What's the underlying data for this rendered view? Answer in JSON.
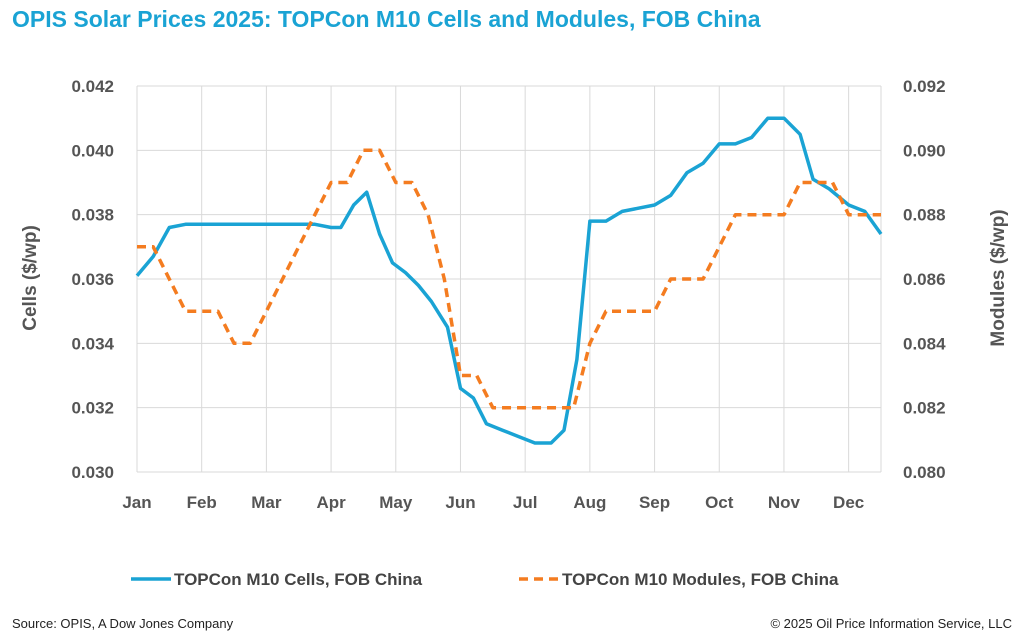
{
  "title": "OPIS Solar Prices 2025: TOPCon M10 Cells and Modules, FOB China",
  "source": "Source: OPIS, A Dow Jones Company",
  "copyright": "© 2025 Oil Price Information Service, LLC",
  "colors": {
    "title": "#1aa3d4",
    "cells": "#1aa3d4",
    "modules": "#f47c20",
    "grid": "#d9d9d9"
  },
  "chart_data": {
    "type": "line",
    "title": "OPIS Solar Prices 2025: TOPCon M10 Cells and Modules, FOB China",
    "x_label": "",
    "y_left_label": "Cells ($/wp)",
    "y_right_label": "Modules ($/wp)",
    "y_left_range": [
      0.03,
      0.042
    ],
    "y_right_range": [
      0.08,
      0.092
    ],
    "y_left_ticks": [
      "0.030",
      "0.032",
      "0.034",
      "0.036",
      "0.038",
      "0.040",
      "0.042"
    ],
    "y_right_ticks": [
      "0.080",
      "0.082",
      "0.084",
      "0.086",
      "0.088",
      "0.090",
      "0.092"
    ],
    "x_range": [
      0,
      11.5
    ],
    "x_ticks": [
      {
        "label": "Jan",
        "x": 0
      },
      {
        "label": "Feb",
        "x": 1
      },
      {
        "label": "Mar",
        "x": 2
      },
      {
        "label": "Apr",
        "x": 3
      },
      {
        "label": "May",
        "x": 4
      },
      {
        "label": "Jun",
        "x": 5
      },
      {
        "label": "Jul",
        "x": 6
      },
      {
        "label": "Aug",
        "x": 7
      },
      {
        "label": "Sep",
        "x": 8
      },
      {
        "label": "Oct",
        "x": 9
      },
      {
        "label": "Nov",
        "x": 10
      },
      {
        "label": "Dec",
        "x": 11
      }
    ],
    "grid": true,
    "legend_position": "bottom",
    "series": [
      {
        "name": "TOPCon M10 Cells, FOB China",
        "axis": "left",
        "style": "solid",
        "points": [
          [
            0,
            0.0361
          ],
          [
            0.25,
            0.0367
          ],
          [
            0.5,
            0.0376
          ],
          [
            0.75,
            0.0377
          ],
          [
            1,
            0.0377
          ],
          [
            1.25,
            0.0377
          ],
          [
            1.5,
            0.0377
          ],
          [
            1.75,
            0.0377
          ],
          [
            2,
            0.0377
          ],
          [
            2.25,
            0.0377
          ],
          [
            2.5,
            0.0377
          ],
          [
            2.75,
            0.0377
          ],
          [
            3,
            0.0376
          ],
          [
            3.15,
            0.0376
          ],
          [
            3.35,
            0.0383
          ],
          [
            3.55,
            0.0387
          ],
          [
            3.75,
            0.0374
          ],
          [
            3.95,
            0.0365
          ],
          [
            4.15,
            0.0362
          ],
          [
            4.35,
            0.0358
          ],
          [
            4.55,
            0.0353
          ],
          [
            4.8,
            0.0345
          ],
          [
            5,
            0.0326
          ],
          [
            5.2,
            0.0323
          ],
          [
            5.4,
            0.0315
          ],
          [
            5.65,
            0.0313
          ],
          [
            5.9,
            0.0311
          ],
          [
            6.15,
            0.0309
          ],
          [
            6.4,
            0.0309
          ],
          [
            6.6,
            0.0313
          ],
          [
            6.8,
            0.0335
          ],
          [
            7,
            0.0378
          ],
          [
            7.25,
            0.0378
          ],
          [
            7.5,
            0.0381
          ],
          [
            7.75,
            0.0382
          ],
          [
            8,
            0.0383
          ],
          [
            8.25,
            0.0386
          ],
          [
            8.5,
            0.0393
          ],
          [
            8.75,
            0.0396
          ],
          [
            9,
            0.0402
          ],
          [
            9.25,
            0.0402
          ],
          [
            9.5,
            0.0404
          ],
          [
            9.75,
            0.041
          ],
          [
            10,
            0.041
          ],
          [
            10.25,
            0.0405
          ],
          [
            10.45,
            0.0391
          ],
          [
            10.7,
            0.0388
          ],
          [
            11,
            0.0383
          ],
          [
            11.25,
            0.0381
          ],
          [
            11.5,
            0.0374
          ]
        ]
      },
      {
        "name": "TOPCon M10 Modules, FOB China",
        "axis": "right",
        "style": "dashed",
        "points": [
          [
            0,
            0.087
          ],
          [
            0.25,
            0.087
          ],
          [
            0.5,
            0.086
          ],
          [
            0.75,
            0.085
          ],
          [
            1,
            0.085
          ],
          [
            1.25,
            0.085
          ],
          [
            1.5,
            0.084
          ],
          [
            1.75,
            0.084
          ],
          [
            2,
            0.085
          ],
          [
            2.25,
            0.086
          ],
          [
            2.5,
            0.087
          ],
          [
            2.75,
            0.088
          ],
          [
            3,
            0.089
          ],
          [
            3.25,
            0.089
          ],
          [
            3.5,
            0.09
          ],
          [
            3.75,
            0.09
          ],
          [
            4,
            0.089
          ],
          [
            4.25,
            0.089
          ],
          [
            4.5,
            0.088
          ],
          [
            4.75,
            0.086
          ],
          [
            5,
            0.083
          ],
          [
            5.25,
            0.083
          ],
          [
            5.5,
            0.082
          ],
          [
            5.75,
            0.082
          ],
          [
            6,
            0.082
          ],
          [
            6.25,
            0.082
          ],
          [
            6.5,
            0.082
          ],
          [
            6.75,
            0.082
          ],
          [
            7,
            0.084
          ],
          [
            7.25,
            0.085
          ],
          [
            7.5,
            0.085
          ],
          [
            7.75,
            0.085
          ],
          [
            8,
            0.085
          ],
          [
            8.25,
            0.086
          ],
          [
            8.5,
            0.086
          ],
          [
            8.75,
            0.086
          ],
          [
            9,
            0.087
          ],
          [
            9.25,
            0.088
          ],
          [
            9.5,
            0.088
          ],
          [
            9.75,
            0.088
          ],
          [
            10,
            0.088
          ],
          [
            10.25,
            0.089
          ],
          [
            10.5,
            0.089
          ],
          [
            10.75,
            0.089
          ],
          [
            11,
            0.088
          ],
          [
            11.25,
            0.088
          ],
          [
            11.5,
            0.088
          ]
        ]
      }
    ]
  }
}
